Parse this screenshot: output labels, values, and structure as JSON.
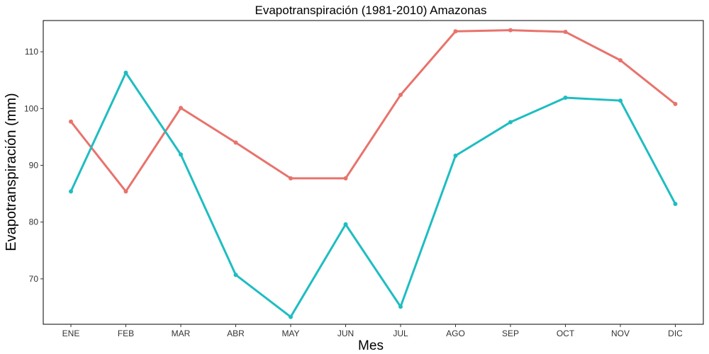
{
  "chart_data": {
    "type": "line",
    "title": "Evapotranspiración (1981-2010)  Amazonas",
    "xlabel": "Mes",
    "ylabel": "Evapotranspiración (mm)",
    "categories": [
      "ENE",
      "FEB",
      "MAR",
      "ABR",
      "MAY",
      "JUN",
      "JUL",
      "AGO",
      "SEP",
      "OCT",
      "NOV",
      "DIC"
    ],
    "ylim": [
      62,
      115.5
    ],
    "yticks": [
      70,
      80,
      90,
      100,
      110
    ],
    "grid": false,
    "legend": "none",
    "series": [
      {
        "color": "#E8736C",
        "values": [
          97.7,
          85.4,
          100.1,
          94.0,
          87.7,
          87.7,
          102.4,
          113.6,
          113.8,
          113.5,
          108.5,
          100.8
        ]
      },
      {
        "color": "#1EBDC1",
        "values": [
          85.4,
          106.3,
          91.9,
          70.7,
          63.3,
          79.6,
          65.1,
          91.7,
          97.6,
          101.9,
          101.4,
          83.2
        ]
      }
    ]
  }
}
